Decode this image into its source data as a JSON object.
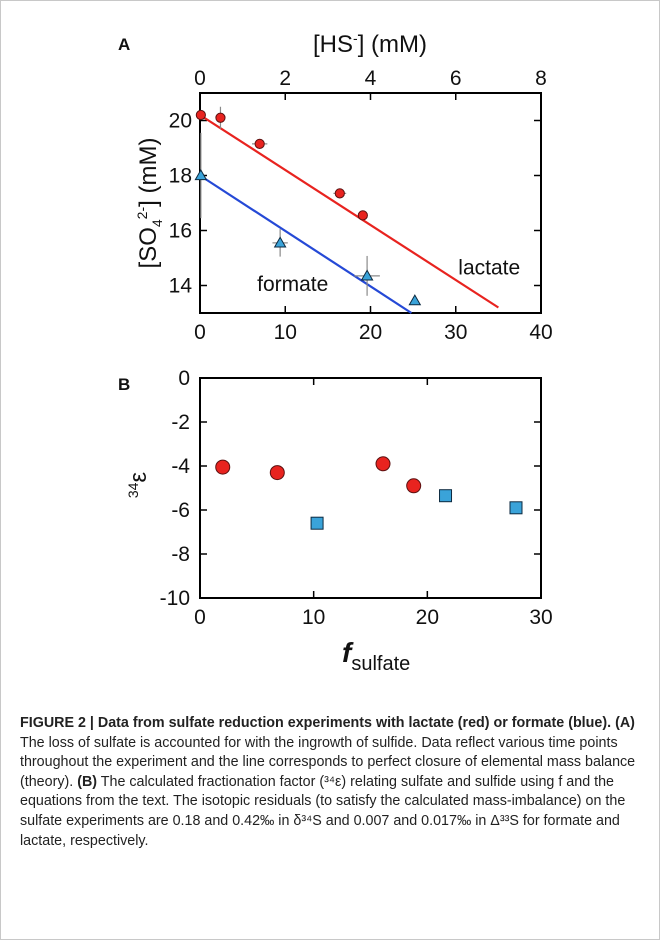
{
  "chart_data": [
    {
      "panel": "A",
      "type": "scatter",
      "xlabel": "",
      "x2label_main": "[HS",
      "x2label_sup": "-",
      "x2label_tail": "] (mM)",
      "ylabel_parts": {
        "a": "[SO",
        "sub": "4",
        "sup": "2-",
        "b": "] (mM)"
      },
      "xlim": [
        0,
        40
      ],
      "x2lim": [
        0,
        8
      ],
      "ylim": [
        13,
        21
      ],
      "xticks": [
        0,
        10,
        20,
        30,
        40
      ],
      "x2ticks": [
        0,
        2,
        4,
        6,
        8
      ],
      "yticks": [
        14,
        16,
        18,
        20
      ],
      "grid": false,
      "series": [
        {
          "name": "lactate",
          "color": "#e8231f",
          "marker": "circle",
          "points": [
            {
              "x": 0.1,
              "y": 20.2,
              "ey": 0.2,
              "ex": 0.3
            },
            {
              "x": 2.4,
              "y": 20.1,
              "ey": 0.8,
              "ex": 0.3
            },
            {
              "x": 7.0,
              "y": 19.15,
              "ey": 0.1,
              "ex": 1.8
            },
            {
              "x": 16.4,
              "y": 17.35,
              "ey": 0.1,
              "ex": 1.5
            },
            {
              "x": 19.1,
              "y": 16.55,
              "ey": 0.05,
              "ex": 0.5
            }
          ],
          "line": [
            [
              0,
              20.2
            ],
            [
              35,
              13.2
            ]
          ]
        },
        {
          "name": "formate",
          "color": "#2549d6",
          "marker_color": "#3aa3d9",
          "marker": "triangle",
          "points": [
            {
              "x": 0.1,
              "y": 18.0,
              "ey": 3.1,
              "ex": 0
            },
            {
              "x": 9.4,
              "y": 15.55,
              "ey": 1.0,
              "ex": 1.8
            },
            {
              "x": 19.6,
              "y": 14.35,
              "ey": 1.45,
              "ex": 3.0
            },
            {
              "x": 25.2,
              "y": 13.45,
              "ey": 0.1,
              "ex": 0.2
            }
          ],
          "line": [
            [
              0,
              18.0
            ],
            [
              24.8,
              13.0
            ]
          ]
        }
      ],
      "annotations": [
        {
          "text": "lactate",
          "x": 30.3,
          "y": 14.4
        },
        {
          "text": "formate",
          "x": 6.7,
          "y": 13.8
        }
      ]
    },
    {
      "panel": "B",
      "type": "scatter",
      "xlabel_main": "f",
      "xlabel_sub": "sulfate",
      "ylabel_pre": "34",
      "ylabel_main": "ε",
      "xlim": [
        0,
        30
      ],
      "ylim": [
        -10,
        0
      ],
      "xticks": [
        0,
        10,
        20,
        30
      ],
      "yticks": [
        0,
        -2,
        -4,
        -6,
        -8,
        -10
      ],
      "grid": false,
      "series": [
        {
          "name": "lactate",
          "color": "#e8231f",
          "marker": "circle",
          "points": [
            {
              "x": 2.0,
              "y": -4.05
            },
            {
              "x": 6.8,
              "y": -4.3
            },
            {
              "x": 16.1,
              "y": -3.9
            },
            {
              "x": 18.8,
              "y": -4.9
            }
          ]
        },
        {
          "name": "formate",
          "color": "#3aa3d9",
          "marker": "square",
          "points": [
            {
              "x": 10.3,
              "y": -6.6
            },
            {
              "x": 21.6,
              "y": -5.35
            },
            {
              "x": 27.8,
              "y": -5.9
            }
          ]
        }
      ]
    }
  ],
  "caption": {
    "lead": "FIGURE 2 | Data from sulfate reduction experiments with lactate (red) or formate (blue).",
    "tag_a": "(A)",
    "text_a": "The loss of sulfate is accounted for with the ingrowth of sulfide. Data reflect various time points throughout the experiment and the line corresponds to perfect closure of elemental mass balance (theory).",
    "tag_b": "(B)",
    "text_b": "The calculated fractionation factor (³⁴ε) relating sulfate and sulfide using f and the equations from the text. The isotopic residuals (to satisfy the calculated mass-imbalance) on the sulfate experiments are 0.18 and 0.42‰ in δ³⁴S and 0.007 and 0.017‰ in Δ³³S for formate and lactate, respectively."
  }
}
